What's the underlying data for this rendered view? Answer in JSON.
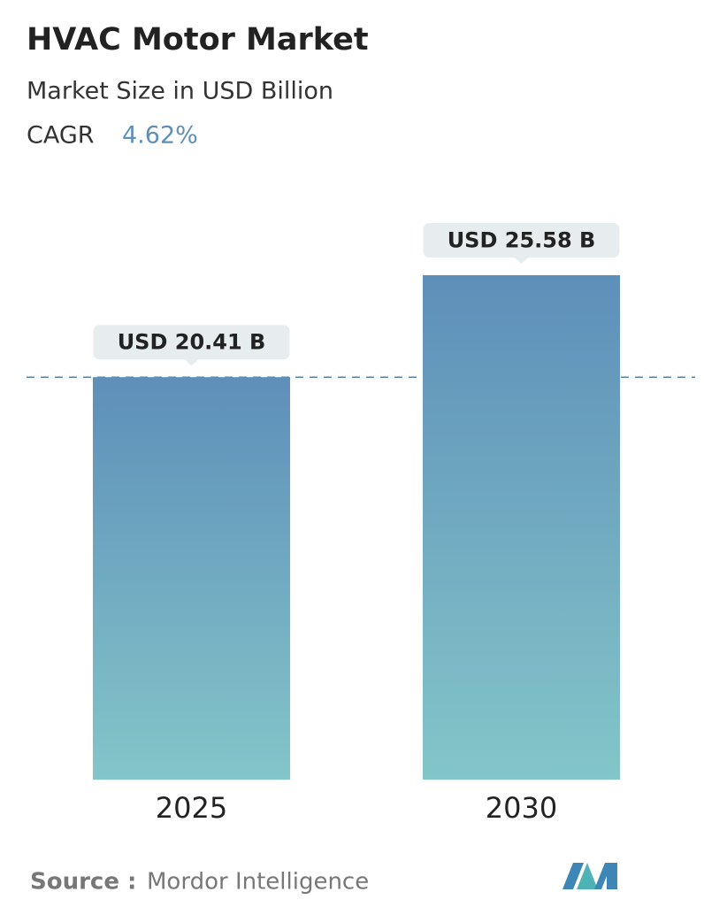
{
  "chart_data": {
    "type": "bar",
    "title": "HVAC Motor Market",
    "subtitle": "Market Size in USD Billion",
    "cagr_label": "CAGR",
    "cagr": "4.62%",
    "categories": [
      "2025",
      "2030"
    ],
    "values": [
      20.41,
      25.58
    ],
    "value_labels": [
      "USD 20.41 B",
      "USD 25.58 B"
    ],
    "color": [
      "#5e8fb9",
      "#83c6c9"
    ],
    "source_label": "Source :",
    "source": "Mordor Intelligence"
  }
}
